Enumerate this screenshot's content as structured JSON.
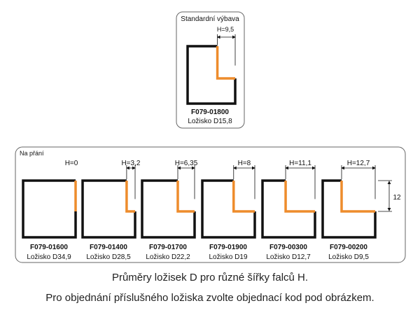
{
  "colors": {
    "frame": "#111111",
    "rebate": "#ee8c2c",
    "panel_border": "#666666",
    "text": "#111111"
  },
  "standard": {
    "title": "Standardní výbava",
    "h_label": "H=9,5",
    "h_value": 9.5,
    "code": "F079-01800",
    "bearing": "Ložisko D15,8"
  },
  "custom": {
    "title": "Na přání",
    "height_label": "12",
    "items": [
      {
        "h_label": "H=0",
        "h_value": 0,
        "code": "F079-01600",
        "bearing": "Ložisko D34,9"
      },
      {
        "h_label": "H=3,2",
        "h_value": 3.2,
        "code": "F079-01400",
        "bearing": "Ložisko D28,5"
      },
      {
        "h_label": "H=6,35",
        "h_value": 6.35,
        "code": "F079-01700",
        "bearing": "Ložisko D22,2"
      },
      {
        "h_label": "H=8",
        "h_value": 8,
        "code": "F079-01900",
        "bearing": "Ložisko D19"
      },
      {
        "h_label": "H=11,1",
        "h_value": 11.1,
        "code": "F079-00300",
        "bearing": "Ložisko D12,7"
      },
      {
        "h_label": "H=12,7",
        "h_value": 12.7,
        "code": "F079-00200",
        "bearing": "Ložisko D9,5"
      }
    ]
  },
  "captions": {
    "line1": "Průměry ložisek  D pro různé šířky falců H.",
    "line2": "Pro objednání příslušného ložiska zvolte objednací kod pod obrázkem."
  }
}
